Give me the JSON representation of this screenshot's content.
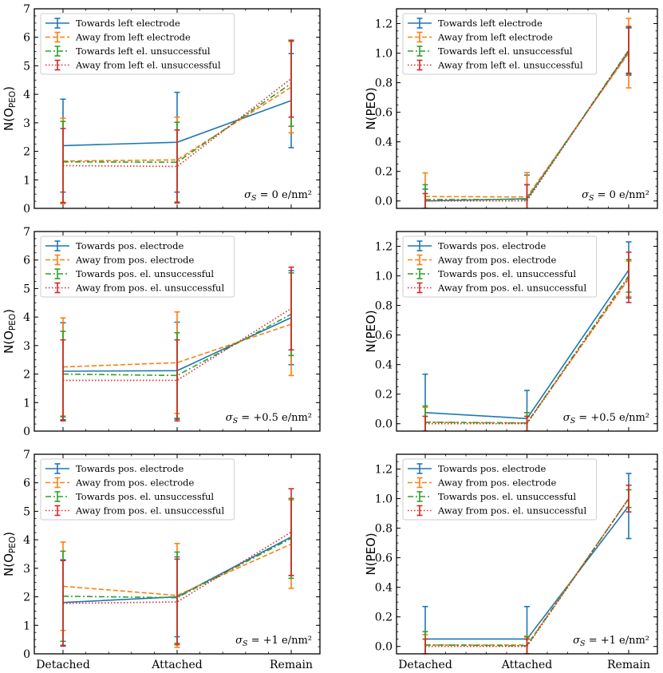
{
  "colors": {
    "series1": "#1f77b4",
    "series2": "#ff7f0e",
    "series3": "#2ca02c",
    "series4": "#d62728"
  },
  "chart_data": [
    {
      "type": "line",
      "row": 0,
      "col": 0,
      "categories": [
        "Detached",
        "Attached",
        "Remain"
      ],
      "ylabel_main": "N(O",
      "ylabel_sub": "PEO",
      "ylabel_end": ")",
      "ylim": [
        0,
        7
      ],
      "yticks": [
        "0",
        "1",
        "2",
        "3",
        "4",
        "5",
        "6",
        "7"
      ],
      "annotation": "σ_S = 0 e/nm²",
      "legend_position": "upper-left",
      "series": [
        {
          "name": "Towards left electrode",
          "style": "solid",
          "values": [
            2.2,
            2.32,
            3.78
          ],
          "errors": [
            1.63,
            1.75,
            1.65
          ]
        },
        {
          "name": "Away from left electrode",
          "style": "dashed",
          "values": [
            1.66,
            1.7,
            4.25
          ],
          "errors": [
            1.5,
            1.5,
            1.6
          ]
        },
        {
          "name": "Towards left el. unsuccessful",
          "style": "dashdot",
          "values": [
            1.63,
            1.62,
            4.38
          ],
          "errors": [
            1.42,
            1.4,
            1.5
          ]
        },
        {
          "name": "Away from left el. unsuccessful",
          "style": "dotted",
          "values": [
            1.5,
            1.47,
            4.55
          ],
          "errors": [
            1.3,
            1.28,
            1.35
          ]
        }
      ]
    },
    {
      "type": "line",
      "row": 0,
      "col": 1,
      "categories": [
        "Detached",
        "Attached",
        "Remain"
      ],
      "ylabel_main": "N(PEO)",
      "ylim": [
        -0.05,
        1.3
      ],
      "yticks": [
        "0.0",
        "0.2",
        "0.4",
        "0.6",
        "0.8",
        "1.0",
        "1.2"
      ],
      "annotation": "σ_S = 0 e/nm²",
      "legend_position": "upper-left",
      "series": [
        {
          "name": "Towards left electrode",
          "style": "solid",
          "values": [
            0.0,
            0.015,
            1.01
          ],
          "errors": [
            0.08,
            0.16,
            0.16
          ]
        },
        {
          "name": "Away from left electrode",
          "style": "dashed",
          "values": [
            0.03,
            0.027,
            1.0
          ],
          "errors": [
            0.16,
            0.165,
            0.235
          ]
        },
        {
          "name": "Towards left el. unsuccessful",
          "style": "dashdot",
          "values": [
            0.01,
            0.01,
            1.02
          ],
          "errors": [
            0.1,
            0.1,
            0.155
          ]
        },
        {
          "name": "Away from left el. unsuccessful",
          "style": "dotted",
          "values": [
            0.0,
            0.0,
            1.02
          ],
          "errors": [
            0.05,
            0.11,
            0.16
          ]
        }
      ]
    },
    {
      "type": "line",
      "row": 1,
      "col": 0,
      "categories": [
        "Detached",
        "Attached",
        "Remain"
      ],
      "ylabel_main": "N(O",
      "ylabel_sub": "PEO",
      "ylabel_end": ")",
      "ylim": [
        0,
        7
      ],
      "yticks": [
        "0",
        "1",
        "2",
        "3",
        "4",
        "5",
        "6",
        "7"
      ],
      "annotation": "σ_S = +0.5 e/nm²",
      "legend_position": "upper-left",
      "series": [
        {
          "name": "Towards pos. electrode",
          "style": "solid",
          "values": [
            2.1,
            2.12,
            3.98
          ],
          "errors": [
            1.7,
            1.7,
            1.65
          ]
        },
        {
          "name": "Away from pos. electrode",
          "style": "dashed",
          "values": [
            2.25,
            2.4,
            3.75
          ],
          "errors": [
            1.72,
            1.78,
            1.8
          ]
        },
        {
          "name": "Towards pos. el. unsuccessful",
          "style": "dashdot",
          "values": [
            2.0,
            1.95,
            4.1
          ],
          "errors": [
            1.5,
            1.5,
            1.45
          ]
        },
        {
          "name": "Away from pos. el. unsuccessful",
          "style": "dotted",
          "values": [
            1.78,
            1.78,
            4.3
          ],
          "errors": [
            1.42,
            1.42,
            1.45
          ]
        }
      ]
    },
    {
      "type": "line",
      "row": 1,
      "col": 1,
      "categories": [
        "Detached",
        "Attached",
        "Remain"
      ],
      "ylabel_main": "N(PEO)",
      "ylim": [
        -0.05,
        1.3
      ],
      "yticks": [
        "0.0",
        "0.2",
        "0.4",
        "0.6",
        "0.8",
        "1.0",
        "1.2"
      ],
      "annotation": "σ_S = +0.5 e/nm²",
      "legend_position": "upper-left",
      "series": [
        {
          "name": "Towards pos. electrode",
          "style": "solid",
          "values": [
            0.075,
            0.035,
            1.04
          ],
          "errors": [
            0.26,
            0.19,
            0.19
          ]
        },
        {
          "name": "Away from pos. electrode",
          "style": "dashed",
          "values": [
            0.01,
            0.005,
            0.98
          ],
          "errors": [
            0.1,
            0.07,
            0.12
          ]
        },
        {
          "name": "Towards pos. el. unsuccessful",
          "style": "dashdot",
          "values": [
            0.01,
            0.005,
            1.0
          ],
          "errors": [
            0.11,
            0.07,
            0.11
          ]
        },
        {
          "name": "Away from pos. el. unsuccessful",
          "style": "dotted",
          "values": [
            0.0,
            0.0,
            0.99
          ],
          "errors": [
            0.05,
            0.05,
            0.17
          ]
        }
      ]
    },
    {
      "type": "line",
      "row": 2,
      "col": 0,
      "categories": [
        "Detached",
        "Attached",
        "Remain"
      ],
      "ylabel_main": "N(O",
      "ylabel_sub": "PEO",
      "ylabel_end": ")",
      "ylim": [
        0,
        7
      ],
      "yticks": [
        "0",
        "1",
        "2",
        "3",
        "4",
        "5",
        "6",
        "7"
      ],
      "annotation": "σ_S = +1 e/nm²",
      "legend_position": "upper-left",
      "series": [
        {
          "name": "Towards pos. electrode",
          "style": "solid",
          "values": [
            1.8,
            2.0,
            4.1
          ],
          "errors": [
            1.5,
            1.4,
            1.35
          ]
        },
        {
          "name": "Away from pos. electrode",
          "style": "dashed",
          "values": [
            2.37,
            2.05,
            3.85
          ],
          "errors": [
            1.55,
            1.82,
            1.55
          ]
        },
        {
          "name": "Towards pos. el. unsuccessful",
          "style": "dashdot",
          "values": [
            2.02,
            1.97,
            4.05
          ],
          "errors": [
            1.58,
            1.6,
            1.4
          ]
        },
        {
          "name": "Away from pos. el. unsuccessful",
          "style": "dotted",
          "values": [
            1.77,
            1.82,
            4.27
          ],
          "errors": [
            1.5,
            1.5,
            1.52
          ]
        }
      ]
    },
    {
      "type": "line",
      "row": 2,
      "col": 1,
      "categories": [
        "Detached",
        "Attached",
        "Remain"
      ],
      "ylabel_main": "N(PEO)",
      "ylim": [
        -0.05,
        1.3
      ],
      "yticks": [
        "0.0",
        "0.2",
        "0.4",
        "0.6",
        "0.8",
        "1.0",
        "1.2"
      ],
      "annotation": "σ_S = +1 e/nm²",
      "legend_position": "upper-left",
      "series": [
        {
          "name": "Towards pos. electrode",
          "style": "solid",
          "values": [
            0.05,
            0.05,
            0.95
          ],
          "errors": [
            0.22,
            0.22,
            0.22
          ]
        },
        {
          "name": "Away from pos. electrode",
          "style": "dashed",
          "values": [
            0.01,
            0.01,
            1.0
          ],
          "errors": [
            0.07,
            0.06,
            0.06
          ]
        },
        {
          "name": "Towards pos. el. unsuccessful",
          "style": "dashdot",
          "values": [
            0.01,
            0.005,
            1.0
          ],
          "errors": [
            0.09,
            0.06,
            0.06
          ]
        },
        {
          "name": "Away from pos. el. unsuccessful",
          "style": "dotted",
          "values": [
            0.0,
            0.0,
            1.0
          ],
          "errors": [
            0.05,
            0.05,
            0.09
          ]
        }
      ]
    }
  ]
}
